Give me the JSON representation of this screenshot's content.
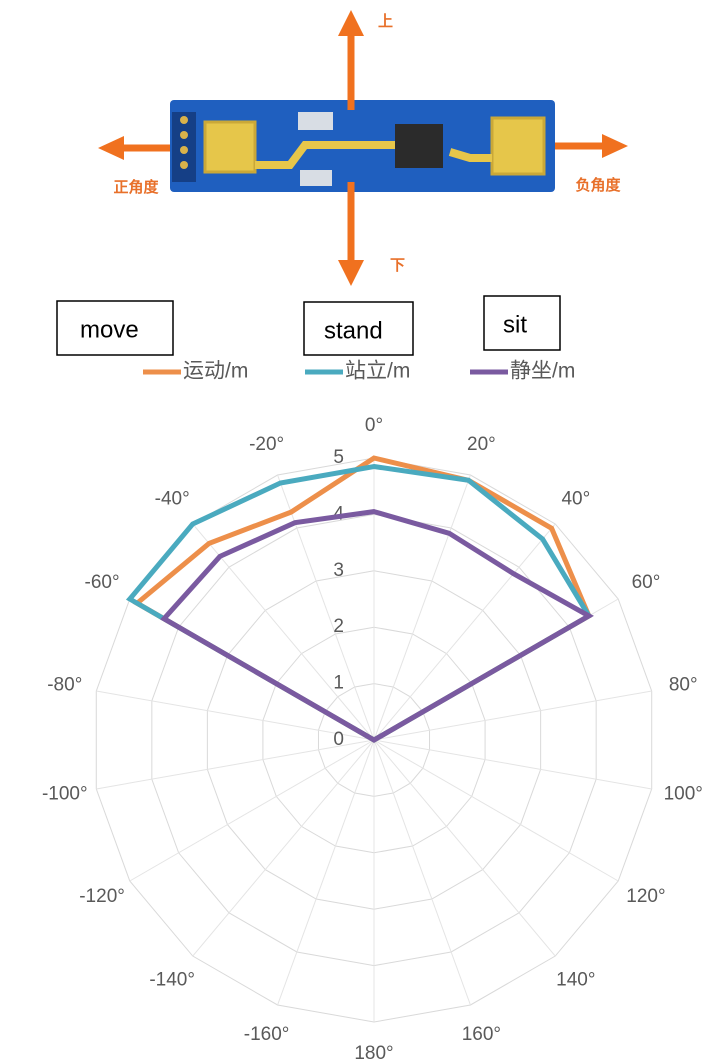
{
  "board": {
    "up": "上",
    "down": "下",
    "left": "正角度",
    "right": "负角度"
  },
  "chart_data": {
    "type": "radar",
    "annotations": [
      "move",
      "stand",
      "sit"
    ],
    "categories": [
      "0°",
      "20°",
      "40°",
      "60°",
      "80°",
      "100°",
      "120°",
      "140°",
      "160°",
      "180°",
      "-160°",
      "-140°",
      "-120°",
      "-100°",
      "-80°",
      "-60°",
      "-40°",
      "-20°"
    ],
    "series": [
      {
        "name": "运动/m",
        "color": "#ed8f4a",
        "values": [
          5,
          4.9,
          4.9,
          4.4,
          0,
          0,
          0,
          0,
          0,
          0,
          0,
          0,
          0,
          0,
          0,
          4.85,
          4.55,
          4.3
        ]
      },
      {
        "name": "站立/m",
        "color": "#4aaabf",
        "values": [
          4.85,
          4.9,
          4.65,
          4.4,
          0,
          0,
          0,
          0,
          0,
          0,
          0,
          0,
          0,
          0,
          0,
          5,
          5,
          4.85
        ]
      },
      {
        "name": "静坐/m",
        "color": "#7a5aa0",
        "values": [
          4.05,
          3.9,
          3.85,
          4.4,
          0,
          0,
          0,
          0,
          0,
          0,
          0,
          0,
          0,
          0,
          0,
          4.3,
          4.25,
          4.1
        ]
      }
    ],
    "ylim": [
      0,
      5
    ],
    "yticks": [
      0,
      1,
      2,
      3,
      4,
      5
    ],
    "grid": true
  }
}
